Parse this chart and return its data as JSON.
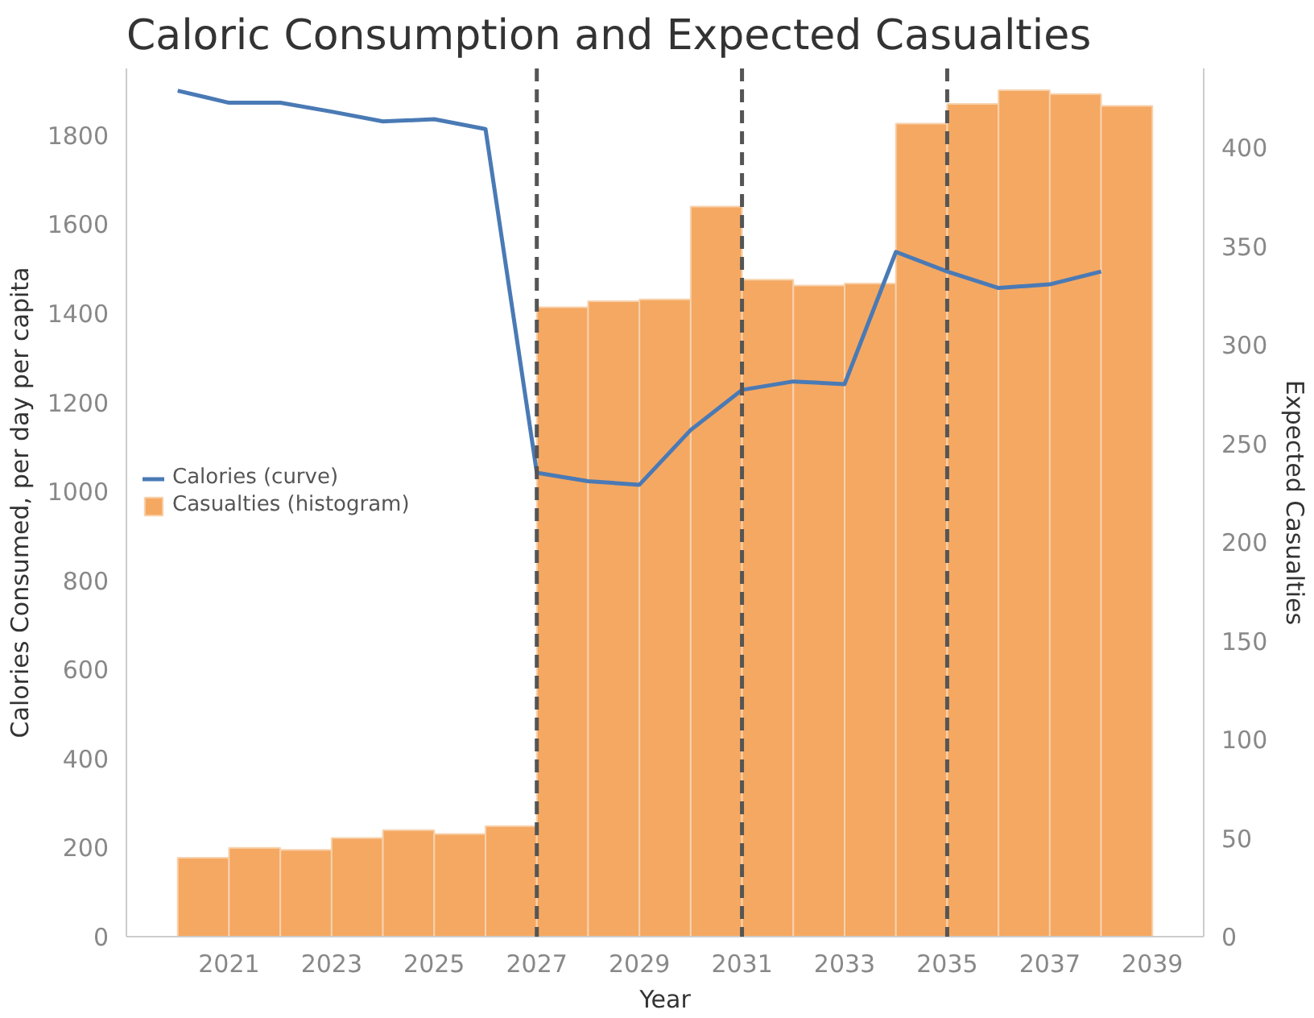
{
  "chart_data": {
    "type": "histogram",
    "title": "Caloric Consumption and Expected Casualties",
    "xlabel": "Year",
    "ylabel": "Calories Consumed, per day per capita",
    "y2label": "Expected Casualties",
    "bins": [
      2020,
      2021,
      2022,
      2023,
      2024,
      2025,
      2026,
      2027,
      2028,
      2029,
      2030,
      2031,
      2032,
      2033,
      2034,
      2035,
      2036,
      2037,
      2038,
      2039
    ],
    "series": [
      {
        "name": "Calories (curve)",
        "type": "line",
        "color": "#4a7ab5",
        "x": [
          2020,
          2021,
          2022,
          2023,
          2024,
          2025,
          2026,
          2027,
          2028,
          2029,
          2030,
          2031,
          2032,
          2033,
          2034,
          2035,
          2036,
          2037,
          2038
        ],
        "values": [
          1900,
          1873,
          1873,
          1853,
          1831,
          1836,
          1814,
          1042,
          1023,
          1015,
          1138,
          1228,
          1247,
          1241,
          1538,
          1494,
          1457,
          1465,
          1494
        ]
      },
      {
        "name": "Casualties (histogram)",
        "axis": "y2",
        "color": "#f5a862",
        "values": [
          40,
          45,
          44,
          50,
          54,
          52,
          56,
          319,
          322,
          323,
          370,
          333,
          330,
          331,
          412,
          422,
          429,
          427,
          421
        ]
      }
    ],
    "xlim": [
      2019,
      2040
    ],
    "xticks": [
      2021,
      2023,
      2025,
      2027,
      2029,
      2031,
      2033,
      2035,
      2037,
      2039
    ],
    "ylim": [
      0,
      1950
    ],
    "yticks": [
      0,
      200,
      400,
      600,
      800,
      1000,
      1200,
      1400,
      1600,
      1800
    ],
    "y2lim": [
      0,
      440
    ],
    "y2ticks": [
      0,
      50,
      100,
      150,
      200,
      250,
      300,
      350,
      400
    ],
    "ref_lines": [
      {
        "axis": "x",
        "value": 2027,
        "color": "#555555",
        "line_style": "dashed"
      },
      {
        "axis": "x",
        "value": 2031,
        "color": "#555555",
        "line_style": "dashed"
      },
      {
        "axis": "x",
        "value": 2035,
        "color": "#555555",
        "line_style": "dashed"
      }
    ],
    "grid": false,
    "legend": "left"
  }
}
